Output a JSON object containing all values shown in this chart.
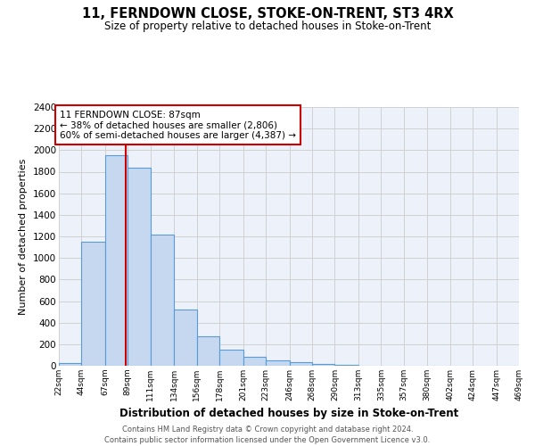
{
  "title": "11, FERNDOWN CLOSE, STOKE-ON-TRENT, ST3 4RX",
  "subtitle": "Size of property relative to detached houses in Stoke-on-Trent",
  "xlabel": "Distribution of detached houses by size in Stoke-on-Trent",
  "ylabel": "Number of detached properties",
  "bin_edges": [
    22,
    44,
    67,
    89,
    111,
    134,
    156,
    178,
    201,
    223,
    246,
    268,
    290,
    313,
    335,
    357,
    380,
    402,
    424,
    447,
    469
  ],
  "bin_counts": [
    25,
    1150,
    1950,
    1840,
    1220,
    520,
    270,
    150,
    80,
    50,
    35,
    15,
    8,
    3,
    1,
    1,
    0,
    0,
    0,
    0
  ],
  "bar_color": "#c5d8f0",
  "bar_edge_color": "#5b9bd5",
  "vline_x": 87,
  "vline_color": "#cc0000",
  "ylim": [
    0,
    2400
  ],
  "annotation_text": "11 FERNDOWN CLOSE: 87sqm\n← 38% of detached houses are smaller (2,806)\n60% of semi-detached houses are larger (4,387) →",
  "annotation_box_color": "#ffffff",
  "annotation_box_edge": "#cc0000",
  "yticks": [
    0,
    200,
    400,
    600,
    800,
    1000,
    1200,
    1400,
    1600,
    1800,
    2000,
    2200,
    2400
  ],
  "tick_labels": [
    "22sqm",
    "44sqm",
    "67sqm",
    "89sqm",
    "111sqm",
    "134sqm",
    "156sqm",
    "178sqm",
    "201sqm",
    "223sqm",
    "246sqm",
    "268sqm",
    "290sqm",
    "313sqm",
    "335sqm",
    "357sqm",
    "380sqm",
    "402sqm",
    "424sqm",
    "447sqm",
    "469sqm"
  ],
  "footer_line1": "Contains HM Land Registry data © Crown copyright and database right 2024.",
  "footer_line2": "Contains public sector information licensed under the Open Government Licence v3.0.",
  "grid_color": "#d0d0d0",
  "background_color": "#edf2fa"
}
